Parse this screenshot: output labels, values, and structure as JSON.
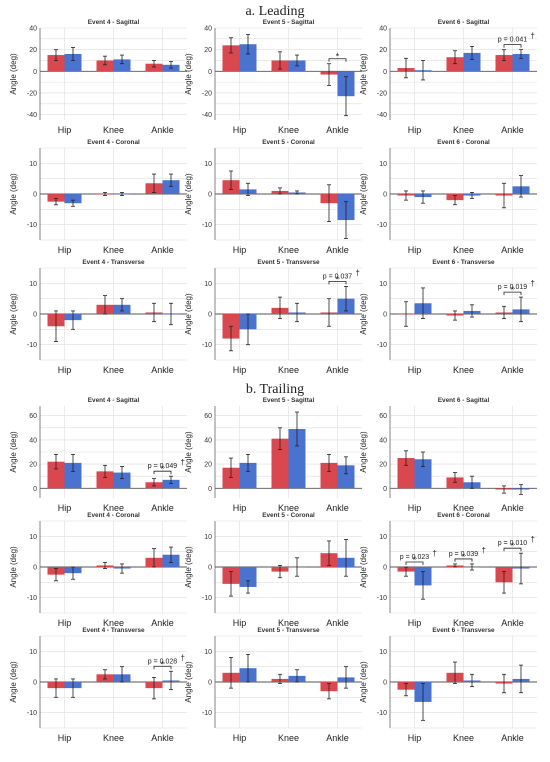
{
  "colors": {
    "red": "#d9474f",
    "blue": "#4a72cf",
    "grid": "#dedede",
    "axis": "#666666"
  },
  "sections": [
    {
      "key": "leading",
      "title": "a. Leading"
    },
    {
      "key": "trailing",
      "title": "b. Trailing"
    }
  ],
  "chart_data": [
    {
      "type": "bar",
      "section": "leading",
      "title": "Event 4 - Sagittal",
      "categories": [
        "Hip",
        "Knee",
        "Ankle"
      ],
      "ylabel": "Angle (deg)",
      "ylim": [
        -45,
        40
      ],
      "yticks": [
        -40,
        -20,
        0,
        20,
        40
      ],
      "grid": true,
      "series": [
        {
          "color": "red",
          "values": [
            15,
            10,
            7
          ],
          "errors": [
            5,
            4,
            3
          ]
        },
        {
          "color": "blue",
          "values": [
            16,
            11,
            6
          ],
          "errors": [
            6,
            4,
            3
          ]
        }
      ],
      "significance": []
    },
    {
      "type": "bar",
      "section": "leading",
      "title": "Event 5 - Sagittal",
      "categories": [
        "Hip",
        "Knee",
        "Ankle"
      ],
      "ylabel": "Angle (deg)",
      "ylim": [
        -45,
        40
      ],
      "yticks": [
        -40,
        -20,
        0,
        20,
        40
      ],
      "grid": true,
      "series": [
        {
          "color": "red",
          "values": [
            24,
            10,
            -3
          ],
          "errors": [
            7,
            8,
            10
          ]
        },
        {
          "color": "blue",
          "values": [
            25,
            10,
            -23
          ],
          "errors": [
            9,
            5,
            18
          ]
        }
      ],
      "significance": [
        {
          "category": 2,
          "label": "",
          "star": true,
          "dagger": false
        }
      ]
    },
    {
      "type": "bar",
      "section": "leading",
      "title": "Event 6 - Sagittal",
      "categories": [
        "Hip",
        "Knee",
        "Ankle"
      ],
      "ylabel": "Angle (deg)",
      "ylim": [
        -45,
        40
      ],
      "yticks": [
        -40,
        -20,
        0,
        20,
        40
      ],
      "grid": true,
      "series": [
        {
          "color": "red",
          "values": [
            3,
            13,
            15
          ],
          "errors": [
            9,
            6,
            5
          ]
        },
        {
          "color": "blue",
          "values": [
            1,
            17,
            16
          ],
          "errors": [
            9,
            6,
            4
          ]
        }
      ],
      "significance": [
        {
          "category": 2,
          "label": "p = 0.041",
          "star": false,
          "dagger": true
        }
      ]
    },
    {
      "type": "bar",
      "section": "leading",
      "title": "Event 4 - Coronal",
      "categories": [
        "Hip",
        "Knee",
        "Ankle"
      ],
      "ylabel": "Angle (deg)",
      "ylim": [
        -15,
        15
      ],
      "yticks": [
        -10,
        0,
        10
      ],
      "grid": true,
      "series": [
        {
          "color": "red",
          "values": [
            -2.5,
            0,
            3.5
          ],
          "errors": [
            1,
            0.5,
            3
          ]
        },
        {
          "color": "blue",
          "values": [
            -3,
            0,
            4.5
          ],
          "errors": [
            1,
            0.5,
            2
          ]
        }
      ],
      "significance": []
    },
    {
      "type": "bar",
      "section": "leading",
      "title": "Event 5 - Coronal",
      "categories": [
        "Hip",
        "Knee",
        "Ankle"
      ],
      "ylabel": "Angle (deg)",
      "ylim": [
        -15,
        15
      ],
      "yticks": [
        -10,
        0,
        10
      ],
      "grid": true,
      "series": [
        {
          "color": "red",
          "values": [
            4.5,
            1,
            -3
          ],
          "errors": [
            3,
            1,
            6
          ]
        },
        {
          "color": "blue",
          "values": [
            1.5,
            0.5,
            -8.5
          ],
          "errors": [
            2,
            0.5,
            6
          ]
        }
      ],
      "significance": []
    },
    {
      "type": "bar",
      "section": "leading",
      "title": "Event 6 - Coronal",
      "categories": [
        "Hip",
        "Knee",
        "Ankle"
      ],
      "ylabel": "Angle (deg)",
      "ylim": [
        -15,
        15
      ],
      "yticks": [
        -10,
        0,
        10
      ],
      "grid": true,
      "series": [
        {
          "color": "red",
          "values": [
            -0.5,
            -2,
            -0.5
          ],
          "errors": [
            1.5,
            1.5,
            4
          ]
        },
        {
          "color": "blue",
          "values": [
            -1,
            -0.5,
            2.5
          ],
          "errors": [
            2,
            1,
            3.5
          ]
        }
      ],
      "significance": []
    },
    {
      "type": "bar",
      "section": "leading",
      "title": "Event 4 - Transverse",
      "categories": [
        "Hip",
        "Knee",
        "Ankle"
      ],
      "ylabel": "Angle (deg)",
      "ylim": [
        -15,
        15
      ],
      "yticks": [
        -10,
        0,
        10
      ],
      "grid": true,
      "series": [
        {
          "color": "red",
          "values": [
            -4,
            3,
            0.5
          ],
          "errors": [
            5,
            3,
            3
          ]
        },
        {
          "color": "blue",
          "values": [
            -2,
            3,
            0
          ],
          "errors": [
            3,
            2,
            3.5
          ]
        }
      ],
      "significance": []
    },
    {
      "type": "bar",
      "section": "leading",
      "title": "Event 5 - Transverse",
      "categories": [
        "Hip",
        "Knee",
        "Ankle"
      ],
      "ylabel": "Angle (deg)",
      "ylim": [
        -15,
        15
      ],
      "yticks": [
        -10,
        0,
        10
      ],
      "grid": true,
      "series": [
        {
          "color": "red",
          "values": [
            -8,
            2,
            0.5
          ],
          "errors": [
            4,
            3.5,
            4.5
          ]
        },
        {
          "color": "blue",
          "values": [
            -5,
            0.5,
            5
          ],
          "errors": [
            5,
            3,
            4
          ]
        }
      ],
      "significance": [
        {
          "category": 2,
          "label": "p = 0.037",
          "star": true,
          "dagger": true
        }
      ]
    },
    {
      "type": "bar",
      "section": "leading",
      "title": "Event 6 - Transverse",
      "categories": [
        "Hip",
        "Knee",
        "Ankle"
      ],
      "ylabel": "Angle (deg)",
      "ylim": [
        -15,
        15
      ],
      "yticks": [
        -10,
        0,
        10
      ],
      "grid": true,
      "series": [
        {
          "color": "red",
          "values": [
            0,
            -0.5,
            0.5
          ],
          "errors": [
            4,
            1.5,
            2
          ]
        },
        {
          "color": "blue",
          "values": [
            3.5,
            1,
            1.5
          ],
          "errors": [
            5,
            2,
            4
          ]
        }
      ],
      "significance": [
        {
          "category": 2,
          "label": "p = 0.019",
          "star": true,
          "dagger": true
        }
      ]
    },
    {
      "type": "bar",
      "section": "trailing",
      "title": "Event 4 - Sagittal",
      "categories": [
        "Hip",
        "Knee",
        "Ankle"
      ],
      "ylabel": "Angle (deg)",
      "ylim": [
        -8,
        68
      ],
      "yticks": [
        0,
        20,
        40,
        60
      ],
      "grid": true,
      "series": [
        {
          "color": "red",
          "values": [
            22,
            14,
            5
          ],
          "errors": [
            6,
            5,
            3
          ]
        },
        {
          "color": "blue",
          "values": [
            21,
            13,
            7
          ],
          "errors": [
            7,
            5,
            3
          ]
        }
      ],
      "significance": [
        {
          "category": 2,
          "label": "p = 0.049",
          "star": true,
          "dagger": true
        }
      ]
    },
    {
      "type": "bar",
      "section": "trailing",
      "title": "Event 5 - Sagittal",
      "categories": [
        "Hip",
        "Knee",
        "Ankle"
      ],
      "ylabel": "Angle (deg)",
      "ylim": [
        -8,
        68
      ],
      "yticks": [
        0,
        20,
        40,
        60
      ],
      "grid": true,
      "series": [
        {
          "color": "red",
          "values": [
            17,
            41,
            21
          ],
          "errors": [
            8,
            9,
            7
          ]
        },
        {
          "color": "blue",
          "values": [
            21,
            49,
            19
          ],
          "errors": [
            7,
            14,
            7
          ]
        }
      ],
      "significance": []
    },
    {
      "type": "bar",
      "section": "trailing",
      "title": "Event 6 - Sagittal",
      "categories": [
        "Hip",
        "Knee",
        "Ankle"
      ],
      "ylabel": "Angle (deg)",
      "ylim": [
        -8,
        68
      ],
      "yticks": [
        0,
        20,
        40,
        60
      ],
      "grid": true,
      "series": [
        {
          "color": "red",
          "values": [
            25,
            9,
            -1
          ],
          "errors": [
            6,
            4,
            3
          ]
        },
        {
          "color": "blue",
          "values": [
            24,
            5,
            -1
          ],
          "errors": [
            6,
            5,
            4
          ]
        }
      ],
      "significance": []
    },
    {
      "type": "bar",
      "section": "trailing",
      "title": "Event 4 - Coronal",
      "categories": [
        "Hip",
        "Knee",
        "Ankle"
      ],
      "ylabel": "Angle (deg)",
      "ylim": [
        -15,
        15
      ],
      "yticks": [
        -10,
        0,
        10
      ],
      "grid": true,
      "series": [
        {
          "color": "red",
          "values": [
            -2.5,
            0.5,
            3
          ],
          "errors": [
            2,
            1,
            3
          ]
        },
        {
          "color": "blue",
          "values": [
            -2,
            -0.5,
            4
          ],
          "errors": [
            2,
            1.5,
            2.5
          ]
        }
      ],
      "significance": []
    },
    {
      "type": "bar",
      "section": "trailing",
      "title": "Event 5 - Coronal",
      "categories": [
        "Hip",
        "Knee",
        "Ankle"
      ],
      "ylabel": "Angle (deg)",
      "ylim": [
        -15,
        15
      ],
      "yticks": [
        -10,
        0,
        10
      ],
      "grid": true,
      "series": [
        {
          "color": "red",
          "values": [
            -5.5,
            -1.5,
            4.5
          ],
          "errors": [
            4,
            2,
            4
          ]
        },
        {
          "color": "blue",
          "values": [
            -6.5,
            0,
            3
          ],
          "errors": [
            2,
            3,
            6
          ]
        }
      ],
      "significance": []
    },
    {
      "type": "bar",
      "section": "trailing",
      "title": "Event 6 - Coronal",
      "categories": [
        "Hip",
        "Knee",
        "Ankle"
      ],
      "ylabel": "Angle (deg)",
      "ylim": [
        -15,
        15
      ],
      "yticks": [
        -10,
        0,
        10
      ],
      "grid": true,
      "series": [
        {
          "color": "red",
          "values": [
            -1.5,
            0.5,
            -5
          ],
          "errors": [
            1.5,
            0.5,
            3.5
          ]
        },
        {
          "color": "blue",
          "values": [
            -6,
            0,
            -0.5
          ],
          "errors": [
            4.5,
            1,
            5
          ]
        }
      ],
      "significance": [
        {
          "category": 0,
          "label": "p = 0.023",
          "star": true,
          "dagger": true
        },
        {
          "category": 1,
          "label": "p = 0.039",
          "star": true,
          "dagger": true
        },
        {
          "category": 2,
          "label": "p = 0.010",
          "star": true,
          "dagger": true
        }
      ]
    },
    {
      "type": "bar",
      "section": "trailing",
      "title": "Event 4 - Transverse",
      "categories": [
        "Hip",
        "Knee",
        "Ankle"
      ],
      "ylabel": "Angle (deg)",
      "ylim": [
        -15,
        15
      ],
      "yticks": [
        -10,
        0,
        10
      ],
      "grid": true,
      "series": [
        {
          "color": "red",
          "values": [
            -2,
            2.5,
            -2
          ],
          "errors": [
            3,
            1.5,
            3.5
          ]
        },
        {
          "color": "blue",
          "values": [
            -2,
            2.5,
            0.5
          ],
          "errors": [
            3,
            2.5,
            3
          ]
        }
      ],
      "significance": [
        {
          "category": 2,
          "label": "p = 0.028",
          "star": true,
          "dagger": true
        }
      ]
    },
    {
      "type": "bar",
      "section": "trailing",
      "title": "Event 5 - Transverse",
      "categories": [
        "Hip",
        "Knee",
        "Ankle"
      ],
      "ylabel": "Angle (deg)",
      "ylim": [
        -15,
        15
      ],
      "yticks": [
        -10,
        0,
        10
      ],
      "grid": true,
      "series": [
        {
          "color": "red",
          "values": [
            3,
            1,
            -3
          ],
          "errors": [
            5,
            1.5,
            2.5
          ]
        },
        {
          "color": "blue",
          "values": [
            4.5,
            2,
            1.5
          ],
          "errors": [
            4.5,
            2,
            3.5
          ]
        }
      ],
      "significance": []
    },
    {
      "type": "bar",
      "section": "trailing",
      "title": "Event 6 - Transverse",
      "categories": [
        "Hip",
        "Knee",
        "Ankle"
      ],
      "ylabel": "Angle (deg)",
      "ylim": [
        -15,
        15
      ],
      "yticks": [
        -10,
        0,
        10
      ],
      "grid": true,
      "series": [
        {
          "color": "red",
          "values": [
            -2.5,
            3,
            -0.5
          ],
          "errors": [
            2,
            3.5,
            3
          ]
        },
        {
          "color": "blue",
          "values": [
            -6.5,
            0.5,
            1
          ],
          "errors": [
            6,
            2,
            4.5
          ]
        }
      ],
      "significance": []
    }
  ]
}
